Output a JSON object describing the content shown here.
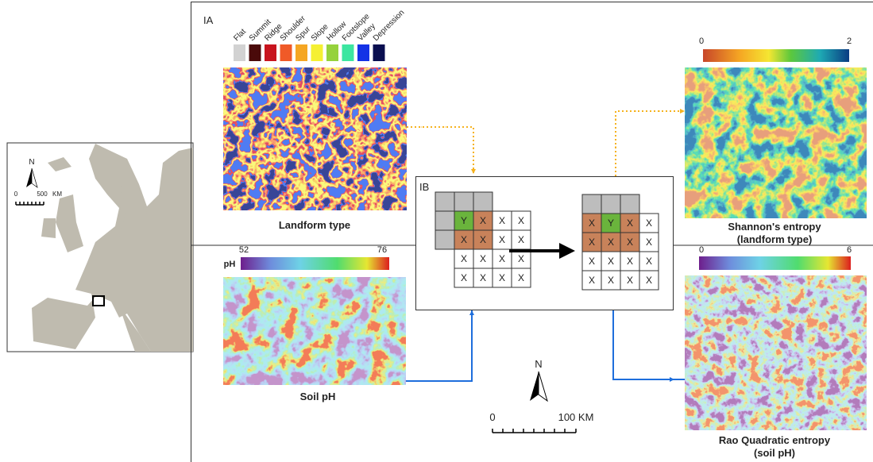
{
  "inset_map": {
    "north": "N",
    "scale_start": 0,
    "scale_mid": 500,
    "scale_unit": "KM"
  },
  "panel_ia": {
    "label": "IA",
    "landform_legend": [
      "Flat",
      "Summit",
      "Ridge",
      "Shoulder",
      "Spur",
      "Slope",
      "Hollow",
      "Footslope",
      "Valley",
      "Depression"
    ],
    "landform_map": {
      "title": "Landform type"
    },
    "shannon_map": {
      "title": "Shannon's entropy",
      "subtitle": "(landform type)",
      "scale_min": 0,
      "scale_max": 2
    },
    "ph_map": {
      "title": "Soil pH",
      "scale_label": "pH",
      "scale_min": 52,
      "scale_max": 76
    },
    "rao_map": {
      "title": "Rao Quadratic entropy",
      "subtitle": "(soil pH)",
      "scale_min": 0,
      "scale_max": 6
    },
    "north": "N",
    "scale_start": "0",
    "scale_end": "100 KM"
  },
  "panel_ib": {
    "label": "IB",
    "grid_before": [
      [
        "Y",
        "X",
        "X",
        "X"
      ],
      [
        "X",
        "X",
        "X",
        "X"
      ],
      [
        "X",
        "X",
        "X",
        "X"
      ],
      [
        "X",
        "X",
        "X",
        "X"
      ]
    ],
    "grid_after": [
      [
        "X",
        "Y",
        "X",
        "X"
      ],
      [
        "X",
        "X",
        "X",
        "X"
      ],
      [
        "X",
        "X",
        "X",
        "X"
      ],
      [
        "X",
        "X",
        "X",
        "X"
      ]
    ]
  }
}
